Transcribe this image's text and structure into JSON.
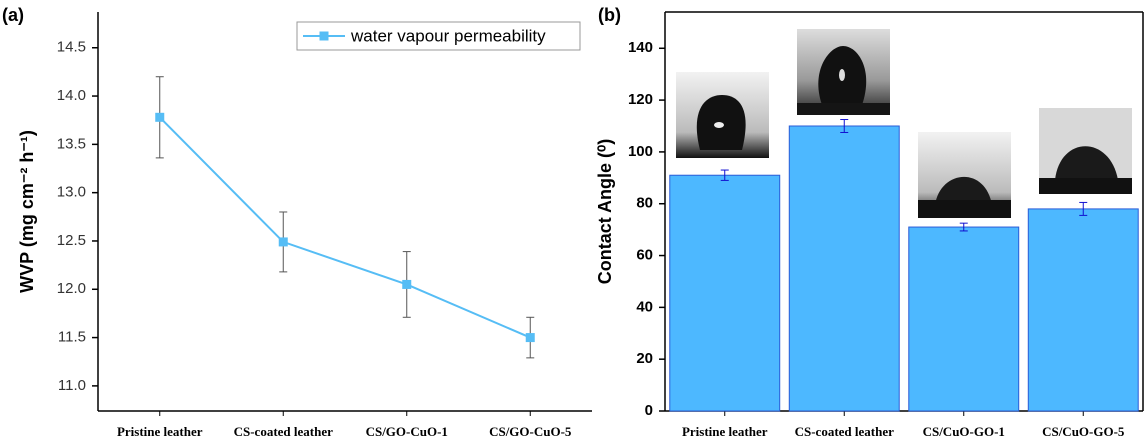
{
  "chart_data": [
    {
      "type": "line",
      "panel": "(a)",
      "y_label": "WVP (mg cm⁻² h⁻¹)",
      "categories": [
        "Pristine leather",
        "CS-coated leather",
        "CS/GO-CuO-1",
        "CS/GO-CuO-5"
      ],
      "series": [
        {
          "name": "water vapour permeability",
          "color": "#56bdf5",
          "values": [
            13.78,
            12.49,
            12.05,
            11.5
          ],
          "errors": [
            0.42,
            0.31,
            0.34,
            0.21
          ]
        }
      ],
      "ylim": [
        10.74,
        14.87
      ],
      "yticks": [
        {
          "value": 11,
          "label": "11.0"
        },
        {
          "value": 11.5,
          "label": "11.5"
        },
        {
          "value": 12,
          "label": "12.0"
        },
        {
          "value": 12.5,
          "label": "12.5"
        },
        {
          "value": 13,
          "label": "13.0"
        },
        {
          "value": 13.5,
          "label": "13.5"
        },
        {
          "value": 14,
          "label": "14.0"
        },
        {
          "value": 14.5,
          "label": "14.5"
        }
      ],
      "legend": "upper right"
    },
    {
      "type": "bar",
      "panel": "(b)",
      "y_label": "Contact Angle (⁰)",
      "categories": [
        "Pristine leather",
        "CS-coated leather",
        "CS/CuO-GO-1",
        "CS/CuO-GO-5"
      ],
      "values": [
        91,
        110,
        71,
        78
      ],
      "errors": [
        2,
        2.5,
        1.5,
        2.5
      ],
      "color": "#4db8ff",
      "ylim": [
        0,
        154
      ],
      "yticks": [
        0,
        20,
        40,
        60,
        80,
        100,
        120,
        140
      ]
    }
  ]
}
